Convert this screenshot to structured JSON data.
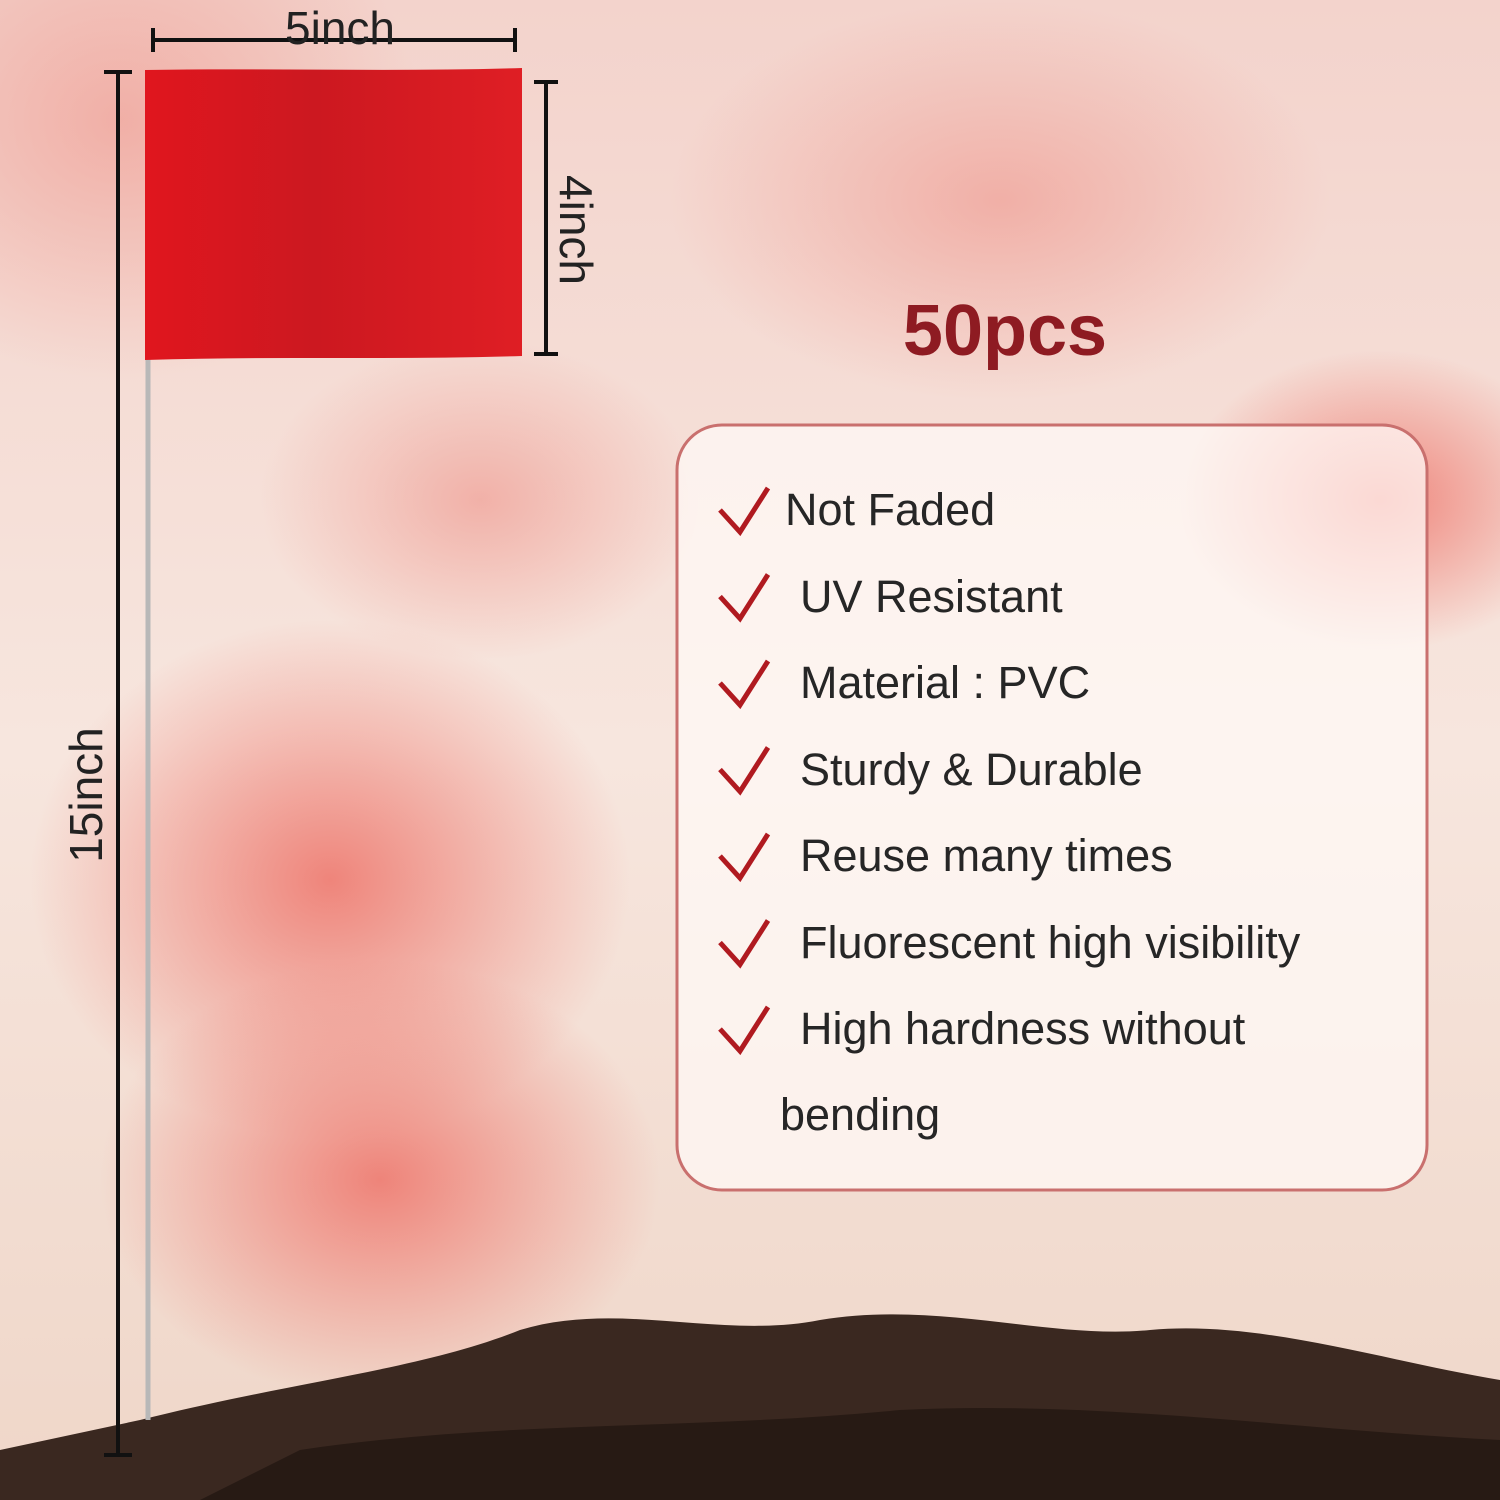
{
  "dimensions": {
    "width": "5inch",
    "height": "4inch",
    "pole": "15inch"
  },
  "quantity": "50pcs",
  "features": [
    "Not  Faded",
    "UV Resistant",
    "Material : PVC",
    "Sturdy  &  Durable",
    "Reuse many times",
    "Fluorescent high visibility",
    "High hardness without bending"
  ]
}
